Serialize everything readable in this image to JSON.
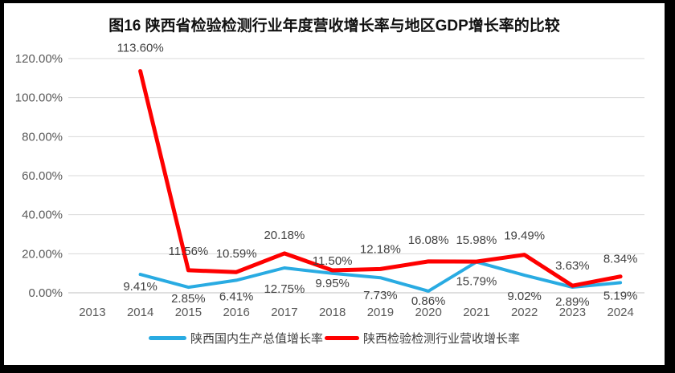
{
  "frame": {
    "border_color": "#000000",
    "background": "#ffffff"
  },
  "chart_data": {
    "type": "line",
    "title": "图16  陕西省检验检测行业年度营收增长率与地区GDP增长率的比较",
    "categories": [
      "2013",
      "2014",
      "2015",
      "2016",
      "2017",
      "2018",
      "2019",
      "2020",
      "2021",
      "2022",
      "2023",
      "2024"
    ],
    "series": [
      {
        "name": "陕西国内生产总值增长率",
        "color": "#29ABE2",
        "values": [
          null,
          9.41,
          2.85,
          6.41,
          12.75,
          9.95,
          7.73,
          0.86,
          15.79,
          9.02,
          2.89,
          5.19
        ]
      },
      {
        "name": "陕西检验检测行业营收增长率",
        "color": "#FE0000",
        "values": [
          null,
          113.6,
          11.56,
          10.59,
          20.18,
          11.5,
          12.18,
          16.08,
          15.98,
          19.49,
          3.63,
          8.34
        ]
      }
    ],
    "y_axis": {
      "ticks": [
        "0.00%",
        "20.00%",
        "40.00%",
        "60.00%",
        "80.00%",
        "100.00%",
        "120.00%"
      ],
      "min": 0,
      "max": 120,
      "step": 20
    },
    "data_label_suffix": "%",
    "data_label_decimals": 2,
    "grid": true,
    "legend_position": "bottom",
    "colors": {
      "gridline": "#D9D9D9",
      "axis_line": "#BFBFBF",
      "axis_text": "#595959",
      "data_label_text": "#404040"
    }
  }
}
